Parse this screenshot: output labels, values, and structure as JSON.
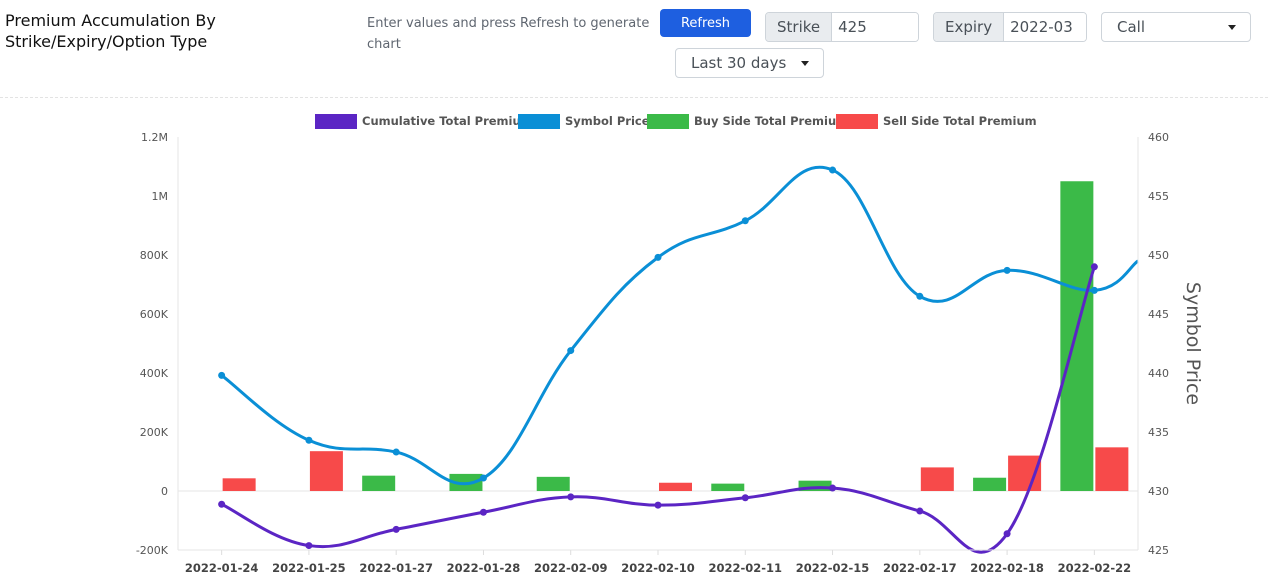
{
  "header": {
    "title": "Premium Accumulation By Strike/Expiry/Option Type",
    "hint": "Enter values and press Refresh to generate chart",
    "refresh_label": "Refresh",
    "strike_label": "Strike",
    "strike_value": "425",
    "expiry_label": "Expiry",
    "expiry_value": "2022-03",
    "option_type": "Call",
    "range": "Last 30 days"
  },
  "colors": {
    "cumulative": "#5b25c4",
    "symbol": "#0a8fd6",
    "buy": "#3bba48",
    "sell": "#f74a4a"
  },
  "chart_data": {
    "type": "bar+line",
    "categories": [
      "2022-01-24",
      "2022-01-25",
      "2022-01-27",
      "2022-01-28",
      "2022-02-09",
      "2022-02-10",
      "2022-02-11",
      "2022-02-15",
      "2022-02-17",
      "2022-02-18",
      "2022-02-22"
    ],
    "series": [
      {
        "name": "Cumulative Total Premium",
        "type": "line",
        "axis": "left",
        "values": [
          -45000,
          -185000,
          -130000,
          -72000,
          -20000,
          -48000,
          -23000,
          10000,
          -68000,
          -145000,
          760000
        ]
      },
      {
        "name": "Symbol Price",
        "type": "line",
        "axis": "right",
        "values": [
          439.8,
          434.3,
          433.3,
          431.1,
          441.9,
          449.8,
          452.9,
          457.2,
          446.5,
          448.7,
          447.0
        ]
      },
      {
        "name": "Buy Side Total Premium",
        "type": "bar",
        "axis": "left",
        "values": [
          0,
          0,
          52000,
          58000,
          48000,
          0,
          25000,
          35000,
          0,
          45000,
          1050000
        ]
      },
      {
        "name": "Sell Side Total Premium",
        "type": "bar",
        "axis": "left",
        "values": [
          43000,
          135000,
          0,
          0,
          0,
          28000,
          0,
          0,
          80000,
          120000,
          148000
        ]
      }
    ],
    "y_left": {
      "min": -200000,
      "max": 1200000,
      "ticks": [
        -200000,
        0,
        200000,
        400000,
        600000,
        800000,
        1000000,
        1200000
      ],
      "tick_labels": [
        "-200K",
        "0",
        "200K",
        "400K",
        "600K",
        "800K",
        "1M",
        "1.2M"
      ]
    },
    "y_right": {
      "label": "Symbol Price",
      "min": 425,
      "max": 460,
      "ticks": [
        425,
        430,
        435,
        440,
        445,
        450,
        455,
        460
      ],
      "tick_labels": [
        "425",
        "430",
        "435",
        "440",
        "445",
        "450",
        "455",
        "460"
      ]
    },
    "symbol_price_continues_to": 449.5,
    "legend": [
      "Cumulative Total Premium",
      "Symbol Price",
      "Buy Side Total Premium",
      "Sell Side Total Premium"
    ],
    "legend_position": "top-center"
  }
}
